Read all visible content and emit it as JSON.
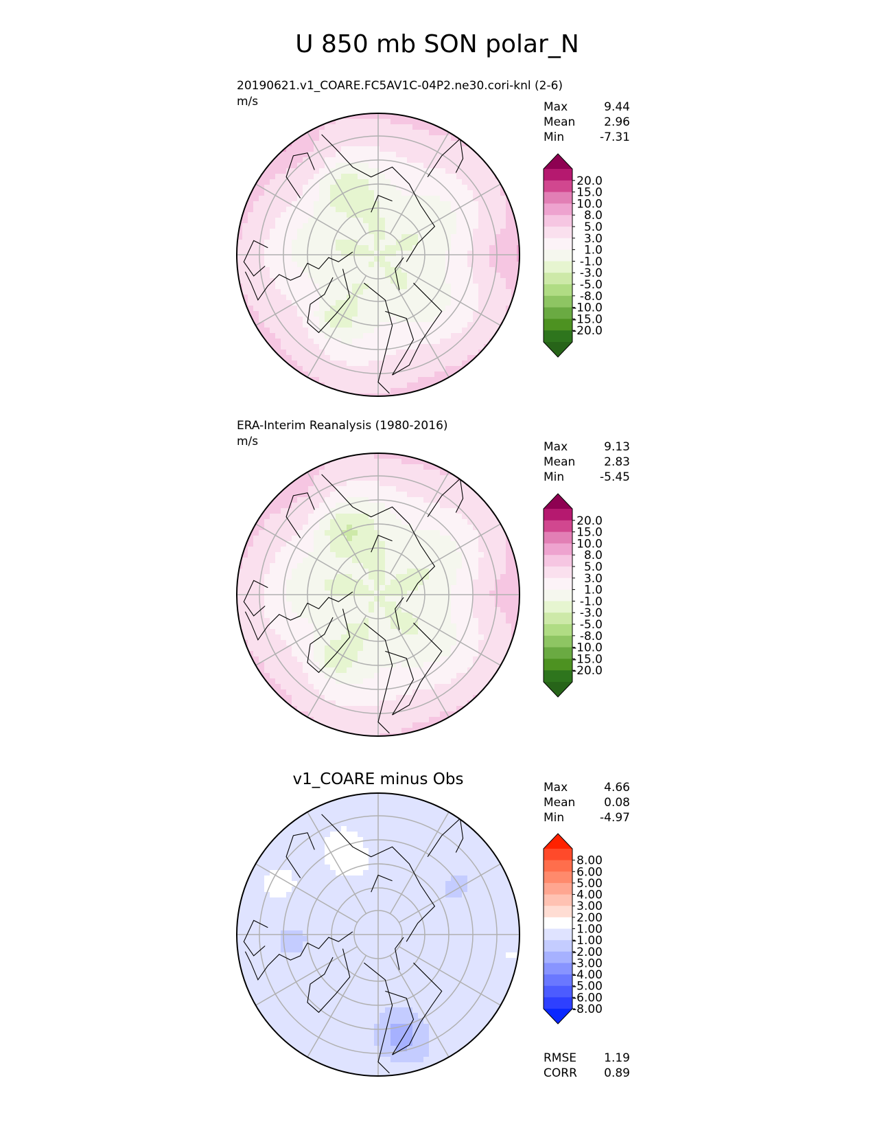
{
  "figure": {
    "title": "U 850 mb SON polar_N"
  },
  "colors": {
    "coast": "#000000",
    "grid": "#b0b0b0",
    "border": "#000000"
  },
  "panels": [
    {
      "id": "test",
      "title": "",
      "left_title": "20190621.v1_COARE.FC5AV1C-04P2.ne30.cori-knl (2-6)",
      "units": "m/s",
      "stats": [
        {
          "label": "Max",
          "value": "9.44"
        },
        {
          "label": "Mean",
          "value": "2.96"
        },
        {
          "label": "Min",
          "value": "-7.31"
        }
      ],
      "colorbar": {
        "labels": [
          "20.0",
          "15.0",
          "10.0",
          "8.0",
          "5.0",
          "3.0",
          "1.0",
          "-1.0",
          "-3.0",
          "-5.0",
          "-8.0",
          "-10.0",
          "-15.0",
          "-20.0"
        ],
        "colors": [
          "#8e0152",
          "#b5196f",
          "#d1478f",
          "#e27fb5",
          "#eea3cf",
          "#f6c6e2",
          "#fae0ee",
          "#fcf3f7",
          "#f5f7ee",
          "#e6f5d0",
          "#cde9a8",
          "#b0dc84",
          "#8ec563",
          "#6aaa42",
          "#4d9221",
          "#2e751d",
          "#276419"
        ],
        "extend": "both"
      },
      "footer_stats": []
    },
    {
      "id": "ref",
      "title": "",
      "left_title": "ERA-Interim Reanalysis (1980-2016)",
      "units": "m/s",
      "stats": [
        {
          "label": "Max",
          "value": "9.13"
        },
        {
          "label": "Mean",
          "value": "2.83"
        },
        {
          "label": "Min",
          "value": "-5.45"
        }
      ],
      "colorbar": {
        "labels": [
          "20.0",
          "15.0",
          "10.0",
          "8.0",
          "5.0",
          "3.0",
          "1.0",
          "-1.0",
          "-3.0",
          "-5.0",
          "-8.0",
          "-10.0",
          "-15.0",
          "-20.0"
        ],
        "colors": [
          "#8e0152",
          "#b5196f",
          "#d1478f",
          "#e27fb5",
          "#eea3cf",
          "#f6c6e2",
          "#fae0ee",
          "#fcf3f7",
          "#f5f7ee",
          "#e6f5d0",
          "#cde9a8",
          "#b0dc84",
          "#8ec563",
          "#6aaa42",
          "#4d9221",
          "#2e751d",
          "#276419"
        ],
        "extend": "both"
      },
      "footer_stats": []
    },
    {
      "id": "diff",
      "title": "v1_COARE minus Obs",
      "left_title": "",
      "units": "",
      "stats": [
        {
          "label": "Max",
          "value": "4.66"
        },
        {
          "label": "Mean",
          "value": "0.08"
        },
        {
          "label": "Min",
          "value": "-4.97"
        }
      ],
      "colorbar": {
        "labels": [
          "8.00",
          "6.00",
          "5.00",
          "4.00",
          "3.00",
          "2.00",
          "1.00",
          "-1.00",
          "-2.00",
          "-3.00",
          "-4.00",
          "-5.00",
          "-6.00",
          "-8.00"
        ],
        "colors": [
          "#ff2200",
          "#ff4a2a",
          "#ff6e4c",
          "#ff8a6c",
          "#ffa690",
          "#ffc2b2",
          "#ffddd3",
          "#ffffff",
          "#dfe3ff",
          "#c4ccff",
          "#a6b1ff",
          "#8894ff",
          "#6a78ff",
          "#4c5cff",
          "#2e40ff",
          "#0a28ff"
        ],
        "extend": "both"
      },
      "footer_stats": [
        {
          "label": "RMSE",
          "value": "1.19"
        },
        {
          "label": "CORR",
          "value": "0.89"
        }
      ]
    }
  ],
  "chart_data": [
    {
      "type": "heatmap",
      "projection": "north-polar-stereographic",
      "title": "",
      "units": "m/s",
      "levels": [
        -20.0,
        -15.0,
        -10.0,
        -8.0,
        -5.0,
        -3.0,
        -1.0,
        1.0,
        3.0,
        5.0,
        8.0,
        10.0,
        15.0,
        20.0
      ],
      "stats": {
        "max": 9.44,
        "mean": 2.96,
        "min": -7.31
      },
      "pattern": "test"
    },
    {
      "type": "heatmap",
      "projection": "north-polar-stereographic",
      "title": "",
      "units": "m/s",
      "levels": [
        -20.0,
        -15.0,
        -10.0,
        -8.0,
        -5.0,
        -3.0,
        -1.0,
        1.0,
        3.0,
        5.0,
        8.0,
        10.0,
        15.0,
        20.0
      ],
      "stats": {
        "max": 9.13,
        "mean": 2.83,
        "min": -5.45
      },
      "pattern": "ref"
    },
    {
      "type": "heatmap",
      "projection": "north-polar-stereographic",
      "title": "v1_COARE minus Obs",
      "levels": [
        -8.0,
        -6.0,
        -5.0,
        -4.0,
        -3.0,
        -2.0,
        -1.0,
        1.0,
        2.0,
        3.0,
        4.0,
        5.0,
        6.0,
        8.0
      ],
      "stats": {
        "max": 4.66,
        "mean": 0.08,
        "min": -4.97,
        "rmse": 1.19,
        "corr": 0.89
      },
      "pattern": "diff"
    }
  ]
}
